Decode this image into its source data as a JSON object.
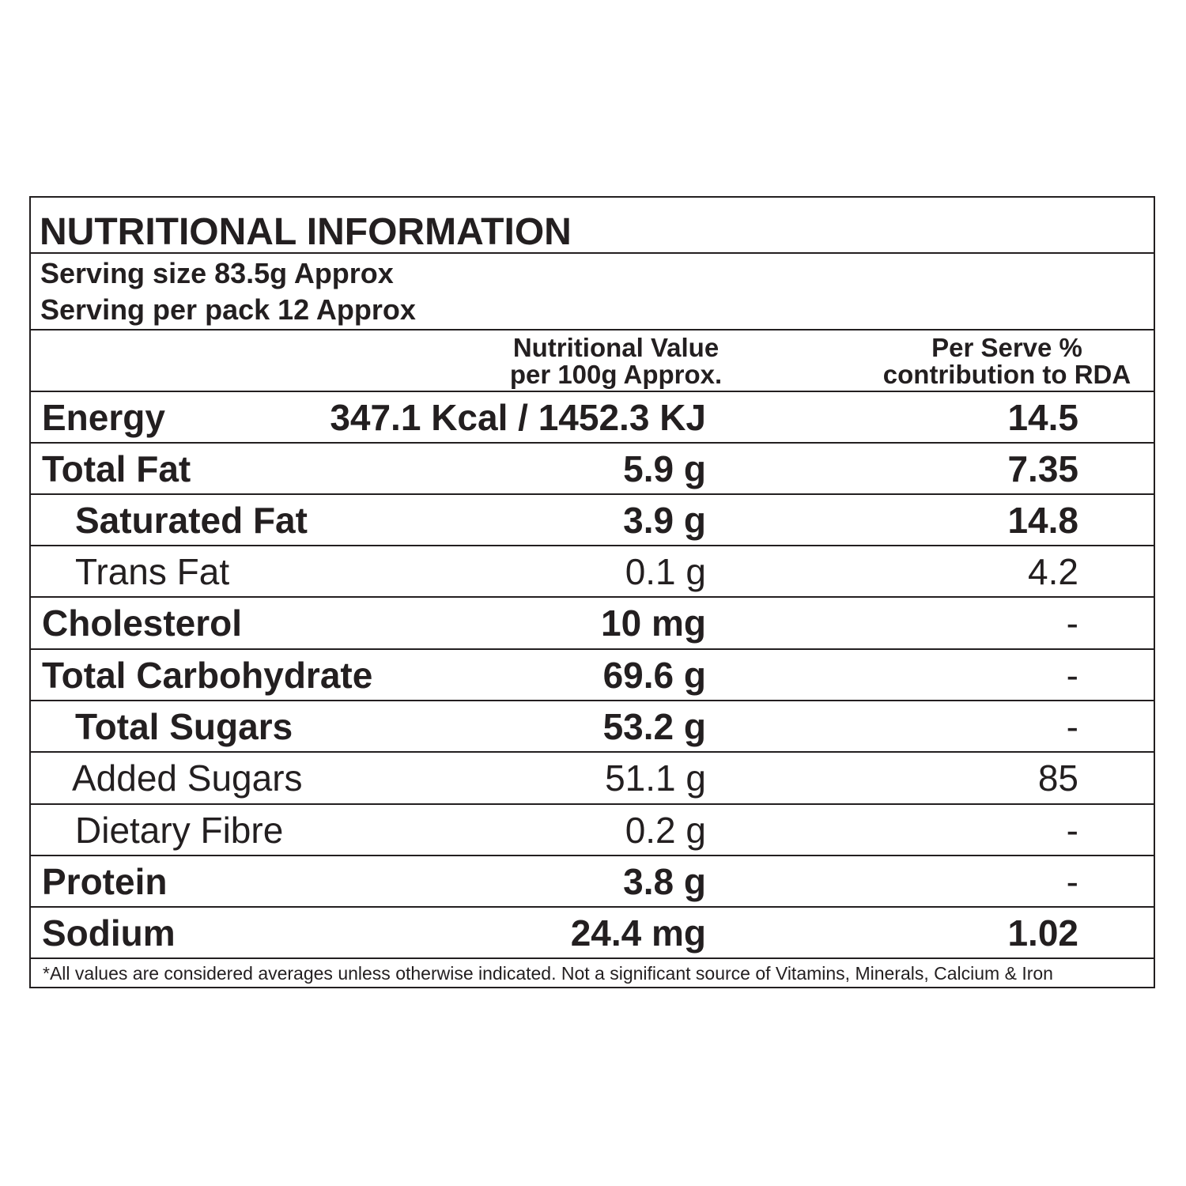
{
  "title": "NUTRITIONAL  INFORMATION",
  "serving_size": "Serving size 83.5g Approx",
  "servings_per_pack": "Serving  per pack 12 Approx",
  "header": {
    "value_col_line1": "Nutritional Value",
    "value_col_line2": "per 100g Approx.",
    "rda_col_line1": "Per Serve %",
    "rda_col_line2": "contribution to RDA"
  },
  "rows": [
    {
      "label": "Energy",
      "value": "347.1 Kcal / 1452.3 KJ",
      "rda": "14.5"
    },
    {
      "label": "Total Fat",
      "value": "5.9 g",
      "rda": "7.35"
    },
    {
      "label": "Saturated Fat",
      "value": "3.9 g",
      "rda": "14.8"
    },
    {
      "label": "Trans Fat",
      "value": "0.1 g",
      "rda": "4.2"
    },
    {
      "label": "Cholesterol",
      "value": "10 mg",
      "rda": "-"
    },
    {
      "label": "Total Carbohydrate",
      "value": "69.6 g",
      "rda": "-"
    },
    {
      "label": "Total Sugars",
      "value": "53.2 g",
      "rda": "-"
    },
    {
      "label": "Added Sugars",
      "value": "51.1 g",
      "rda": "85"
    },
    {
      "label": "Dietary Fibre",
      "value": "0.2 g",
      "rda": "-"
    },
    {
      "label": "Protein",
      "value": "3.8 g",
      "rda": "-"
    },
    {
      "label": "Sodium",
      "value": "24.4 mg",
      "rda": "1.02"
    }
  ],
  "footnote": "*All values are  considered averages unless otherwise indicated. Not a significant source of Vitamins, Minerals, Calcium & Iron"
}
